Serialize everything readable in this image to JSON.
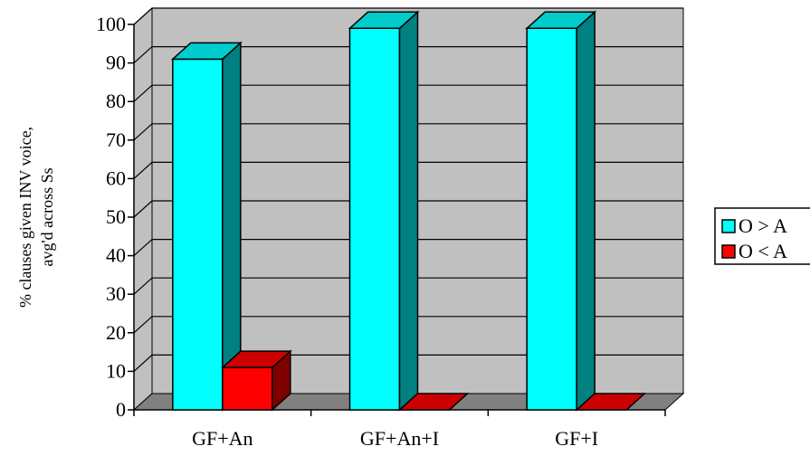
{
  "chart_data": {
    "type": "bar",
    "style": "3d-clustered-column",
    "categories": [
      "GF+An",
      "GF+An+I",
      "GF+I"
    ],
    "series": [
      {
        "name": "O > A",
        "values": [
          91,
          99,
          99
        ],
        "color": "#00FFFF",
        "side_color": "#008080",
        "top_color": "#00CCCC"
      },
      {
        "name": "O < A",
        "values": [
          11,
          0,
          0
        ],
        "color": "#FF0000",
        "side_color": "#800000",
        "top_color": "#CC0000"
      }
    ],
    "ylabel": "% clauses given INV voice,\navg'd across Ss",
    "ylabel_lines": [
      "% clauses given INV voice,",
      "avg'd across Ss"
    ],
    "ylim": [
      0,
      100
    ],
    "yticks": [
      0,
      10,
      20,
      30,
      40,
      50,
      60,
      70,
      80,
      90,
      100
    ],
    "ytick_labels": [
      "0",
      "10",
      "20",
      "30",
      "40",
      "50",
      "60",
      "70",
      "80",
      "90",
      "100"
    ],
    "grid": true,
    "legend_position": "right",
    "wall_color": "#C0C0C0",
    "floor_color": "#808080"
  }
}
